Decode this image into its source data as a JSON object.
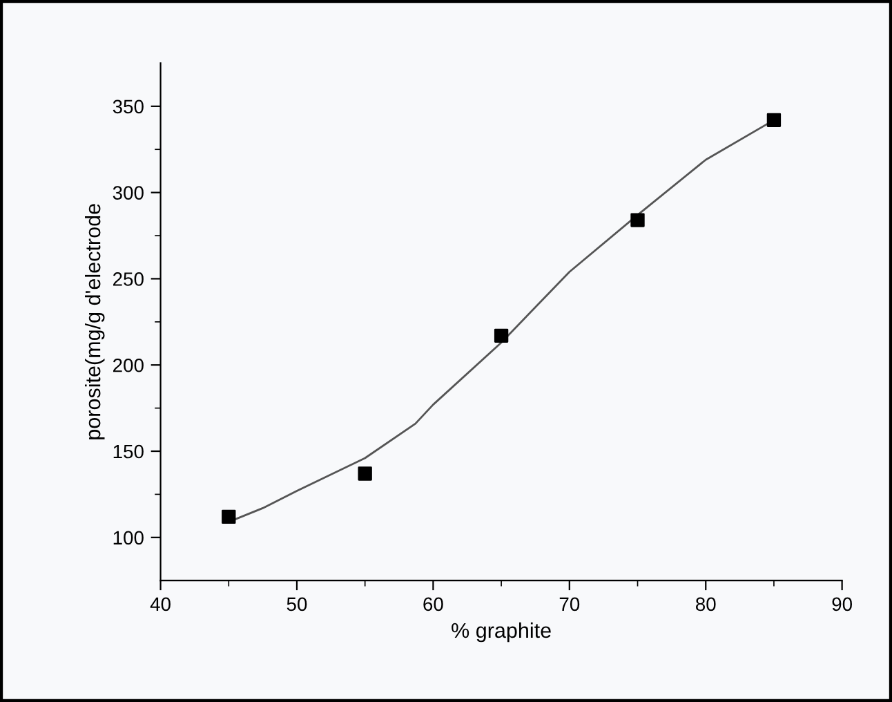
{
  "chart_data": {
    "type": "scatter",
    "xlabel": "% graphite",
    "ylabel": "porosite(mg/g d'electrode",
    "xlim": [
      40,
      90
    ],
    "xticks": [
      40,
      50,
      60,
      70,
      80,
      90
    ],
    "ylim": [
      75,
      375
    ],
    "yticks": [
      100,
      150,
      200,
      250,
      300,
      350
    ],
    "grid": false,
    "series": [
      {
        "marker": "square",
        "color": "#000000",
        "x": [
          45,
          55,
          65,
          75,
          85
        ],
        "values": [
          112,
          137,
          217,
          284,
          342
        ]
      },
      {
        "type": "line",
        "marker": "none",
        "line_style": "solid",
        "color": "#555555",
        "x": [
          45,
          47.5,
          50,
          55,
          58.7,
          60,
          65,
          70,
          75,
          80,
          85
        ],
        "values": [
          109,
          117,
          127,
          146,
          166,
          177,
          213,
          254,
          287,
          319,
          342
        ]
      }
    ]
  }
}
